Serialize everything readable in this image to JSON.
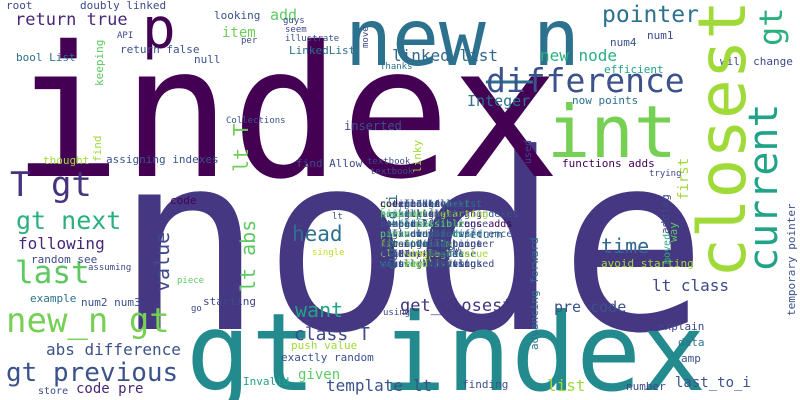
{
  "words": [
    {
      "text": "node",
      "color": "#453781"
    },
    {
      "text": "index",
      "color": "#440154"
    },
    {
      "text": "gt index",
      "color": "#238a8d"
    },
    {
      "text": "new_n",
      "color": "#2c718e"
    },
    {
      "text": "int",
      "color": "#75d054"
    },
    {
      "text": "closest",
      "color": "#a0da39"
    },
    {
      "text": "current",
      "color": "#20a386"
    },
    {
      "text": "gt",
      "color": "#2ab07f"
    },
    {
      "text": "p",
      "color": "#440154"
    },
    {
      "text": "difference",
      "color": "#3b528b"
    },
    {
      "text": "T gt",
      "color": "#46327e"
    },
    {
      "text": "last",
      "color": "#5ec962"
    },
    {
      "text": "new_n gt",
      "color": "#75d054"
    },
    {
      "text": "gt previous",
      "color": "#3b528b"
    },
    {
      "text": "gt next",
      "color": "#2ab07f"
    },
    {
      "text": "pointer",
      "color": "#2c718e"
    },
    {
      "text": "head",
      "color": "#2c718e"
    },
    {
      "text": "value",
      "color": "#3e4989"
    },
    {
      "text": "lt abs",
      "color": "#5ec962"
    },
    {
      "text": "lt T",
      "color": "#6ece58"
    },
    {
      "text": "want",
      "color": "#20a386"
    },
    {
      "text": "time",
      "color": "#31688e"
    },
    {
      "text": "get_closest",
      "color": "#46327e"
    },
    {
      "text": "class T",
      "color": "#3e4989"
    },
    {
      "text": "abs difference",
      "color": "#3b528b"
    },
    {
      "text": "new node",
      "color": "#2ab07f"
    },
    {
      "text": "return true",
      "color": "#482677"
    },
    {
      "text": "linked list",
      "color": "#31688e"
    },
    {
      "text": "Integer",
      "color": "#2c718e"
    },
    {
      "text": "following",
      "color": "#482677"
    },
    {
      "text": "template lt",
      "color": "#3b528b"
    },
    {
      "text": "lt class",
      "color": "#3e4989"
    },
    {
      "text": "code pre",
      "color": "#482677"
    },
    {
      "text": "pre code",
      "color": "#3b528b"
    },
    {
      "text": "list",
      "color": "#a0da39"
    },
    {
      "text": "given",
      "color": "#5ec962"
    },
    {
      "text": "curr_to_i",
      "color": "#2c718e"
    },
    {
      "text": "last_to_i",
      "color": "#3b528b"
    },
    {
      "text": "add",
      "color": "#5ec962"
    },
    {
      "text": "item",
      "color": "#6ece58"
    },
    {
      "text": "random see",
      "color": "#3e4989"
    },
    {
      "text": "inserted",
      "color": "#3b528b"
    },
    {
      "text": "find Allow",
      "color": "#3e4989"
    },
    {
      "text": "assigning indexes",
      "color": "#3b528b"
    },
    {
      "text": "functions adds",
      "color": "#440154"
    },
    {
      "text": "advancing forward",
      "color": "#2c718e"
    },
    {
      "text": "temporary pointer",
      "color": "#3b528b"
    },
    {
      "text": "return false",
      "color": "#3b528b"
    },
    {
      "text": "doubly linked",
      "color": "#3e4989"
    },
    {
      "text": "bool List",
      "color": "#2c718e"
    },
    {
      "text": "LinkedList",
      "color": "#2c718e"
    },
    {
      "text": "efficient",
      "color": "#20a386"
    },
    {
      "text": "now points",
      "color": "#2c718e"
    },
    {
      "text": "will change",
      "color": "#3e4989"
    },
    {
      "text": "push value",
      "color": "#a0da39"
    },
    {
      "text": "exactly random",
      "color": "#3b528b"
    },
    {
      "text": "explain",
      "color": "#3e4989"
    },
    {
      "text": "avoid starting",
      "color": "#a0da39"
    },
    {
      "text": "return",
      "color": "#2c718e"
    },
    {
      "text": "moved",
      "color": "#2ab07f"
    },
    {
      "text": "first",
      "color": "#a0da39"
    },
    {
      "text": "adding",
      "color": "#3e4989"
    },
    {
      "text": "way",
      "color": "#5ec962"
    },
    {
      "text": "data",
      "color": "#2c718e"
    },
    {
      "text": "amp",
      "color": "#3b528b"
    },
    {
      "text": "number",
      "color": "#3e4989"
    },
    {
      "text": "finding",
      "color": "#3b528b"
    },
    {
      "text": "Invalid",
      "color": "#20a386"
    },
    {
      "text": "store",
      "color": "#3e4989"
    },
    {
      "text": "starting",
      "color": "#3e4989"
    },
    {
      "text": "code",
      "color": "#440154"
    },
    {
      "text": "example",
      "color": "#2c718e"
    },
    {
      "text": "num2 num3",
      "color": "#3b528b"
    },
    {
      "text": "num4",
      "color": "#3b528b"
    },
    {
      "text": "num1",
      "color": "#3e4989"
    },
    {
      "text": "root",
      "color": "#3e4989"
    },
    {
      "text": "null",
      "color": "#3b528b"
    },
    {
      "text": "looking",
      "color": "#3b528b"
    },
    {
      "text": "thought",
      "color": "#a0da39"
    },
    {
      "text": "assuming",
      "color": "#3e4989"
    },
    {
      "text": "piece",
      "color": "#5ec962"
    },
    {
      "text": "using",
      "color": "#3e4989"
    },
    {
      "text": "single",
      "color": "#c2df23"
    },
    {
      "text": "new",
      "color": "#3e4989"
    },
    {
      "text": "trying",
      "color": "#3e4989"
    },
    {
      "text": "keeping",
      "color": "#5ec962"
    },
    {
      "text": "linky",
      "color": "#a0da39"
    },
    {
      "text": "textbook",
      "color": "#3e4989"
    },
    {
      "text": "Collections",
      "color": "#3b528b"
    },
    {
      "text": "Thanks",
      "color": "#2c718e"
    },
    {
      "text": "guys",
      "color": "#3e4989"
    },
    {
      "text": "seem",
      "color": "#3e4989"
    },
    {
      "text": "illustrate",
      "color": "#3b528b"
    },
    {
      "text": "possible",
      "color": "#5ec962"
    },
    {
      "text": "move",
      "color": "#3e4989"
    },
    {
      "text": "per",
      "color": "#3e4989"
    },
    {
      "text": "API",
      "color": "#3e4989"
    },
    {
      "text": "find",
      "color": "#a0da39"
    },
    {
      "text": "used",
      "color": "#3e4989"
    },
    {
      "text": "go",
      "color": "#3e4989"
    },
    {
      "text": "lt",
      "color": "#3e4989"
    }
  ]
}
